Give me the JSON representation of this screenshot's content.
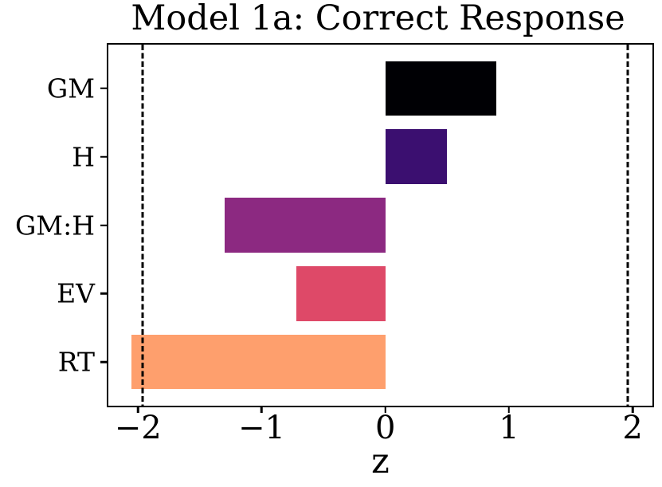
{
  "chart_data": {
    "type": "bar",
    "orientation": "horizontal",
    "title": "Model 1a: Correct Response",
    "xlabel": "z",
    "ylabel": "",
    "categories": [
      "GM",
      "H",
      "GM:H",
      "EV",
      "RT"
    ],
    "values": [
      0.9,
      0.5,
      -1.3,
      -0.72,
      -2.05
    ],
    "bar_colors": [
      "#000004",
      "#3b0f70",
      "#8c2981",
      "#de4968",
      "#fe9f6d"
    ],
    "xlim": [
      -2.24,
      2.16
    ],
    "xticks": [
      -2,
      -1,
      0,
      1,
      2
    ],
    "xtick_labels": [
      "−2",
      "−1",
      "0",
      "1",
      "2"
    ],
    "reference_lines": {
      "values": [
        -1.96,
        1.96
      ],
      "style": "dashed",
      "color": "#000000"
    },
    "grid": false,
    "legend": null,
    "axis_color": "#000000",
    "background_color": "#ffffff"
  }
}
